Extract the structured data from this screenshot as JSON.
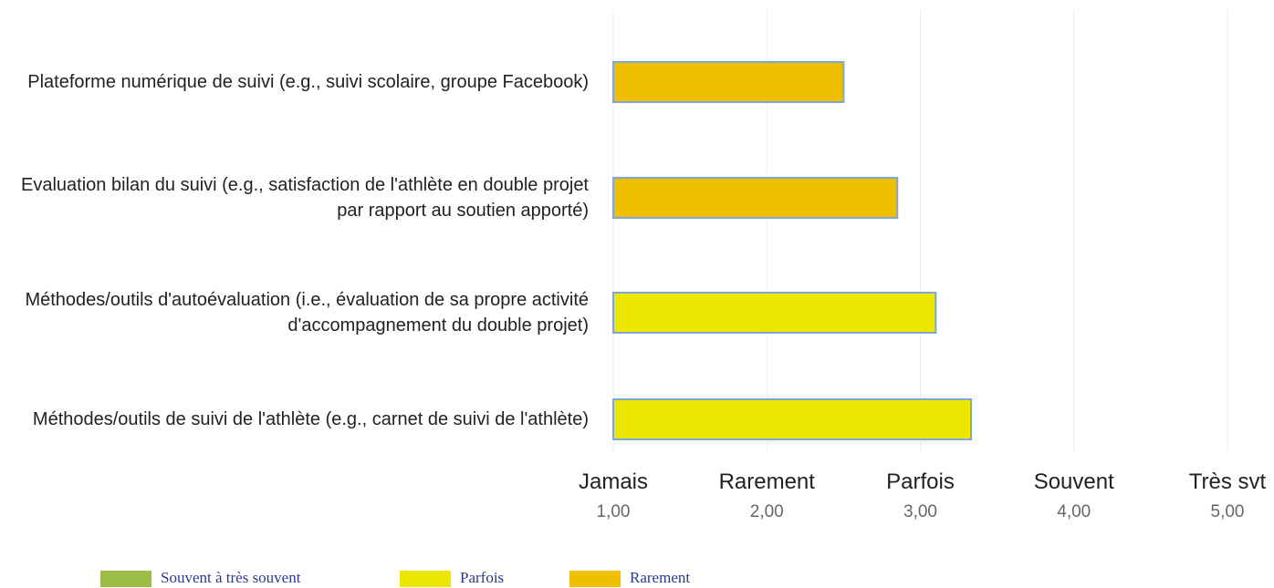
{
  "chart_data": {
    "type": "barh",
    "categories": [
      "Plateforme numérique de suivi (e.g., suivi scolaire, groupe Facebook)",
      "Evaluation bilan du suivi (e.g., satisfaction de l'athlète en double projet par rapport au soutien apporté)",
      "Méthodes/outils d'autoévaluation (i.e., évaluation de sa propre activité d'accompagnement du double projet)",
      "Méthodes/outils de suivi de l'athlète (e.g., carnet de suivi de l'athlète)"
    ],
    "values": [
      2.5,
      2.85,
      3.1,
      3.33
    ],
    "bar_colors": [
      "#f0c000",
      "#f0c000",
      "#ede600",
      "#ede600"
    ],
    "xlim": [
      1,
      5
    ],
    "xticks": [
      {
        "value": 1,
        "label": "1,00"
      },
      {
        "value": 2,
        "label": "2,00"
      },
      {
        "value": 3,
        "label": "3,00"
      },
      {
        "value": 4,
        "label": "4,00"
      },
      {
        "value": 5,
        "label": "5,00"
      }
    ],
    "xtick_names": [
      "Jamais",
      "Rarement",
      "Parfois",
      "Souvent",
      "Très svt"
    ],
    "grid": true,
    "legend": [
      {
        "name": "Souvent à très souvent",
        "color": "#9cbd45"
      },
      {
        "name": "Parfois",
        "color": "#ede600"
      },
      {
        "name": "Rarement",
        "color": "#f0c000"
      }
    ]
  }
}
